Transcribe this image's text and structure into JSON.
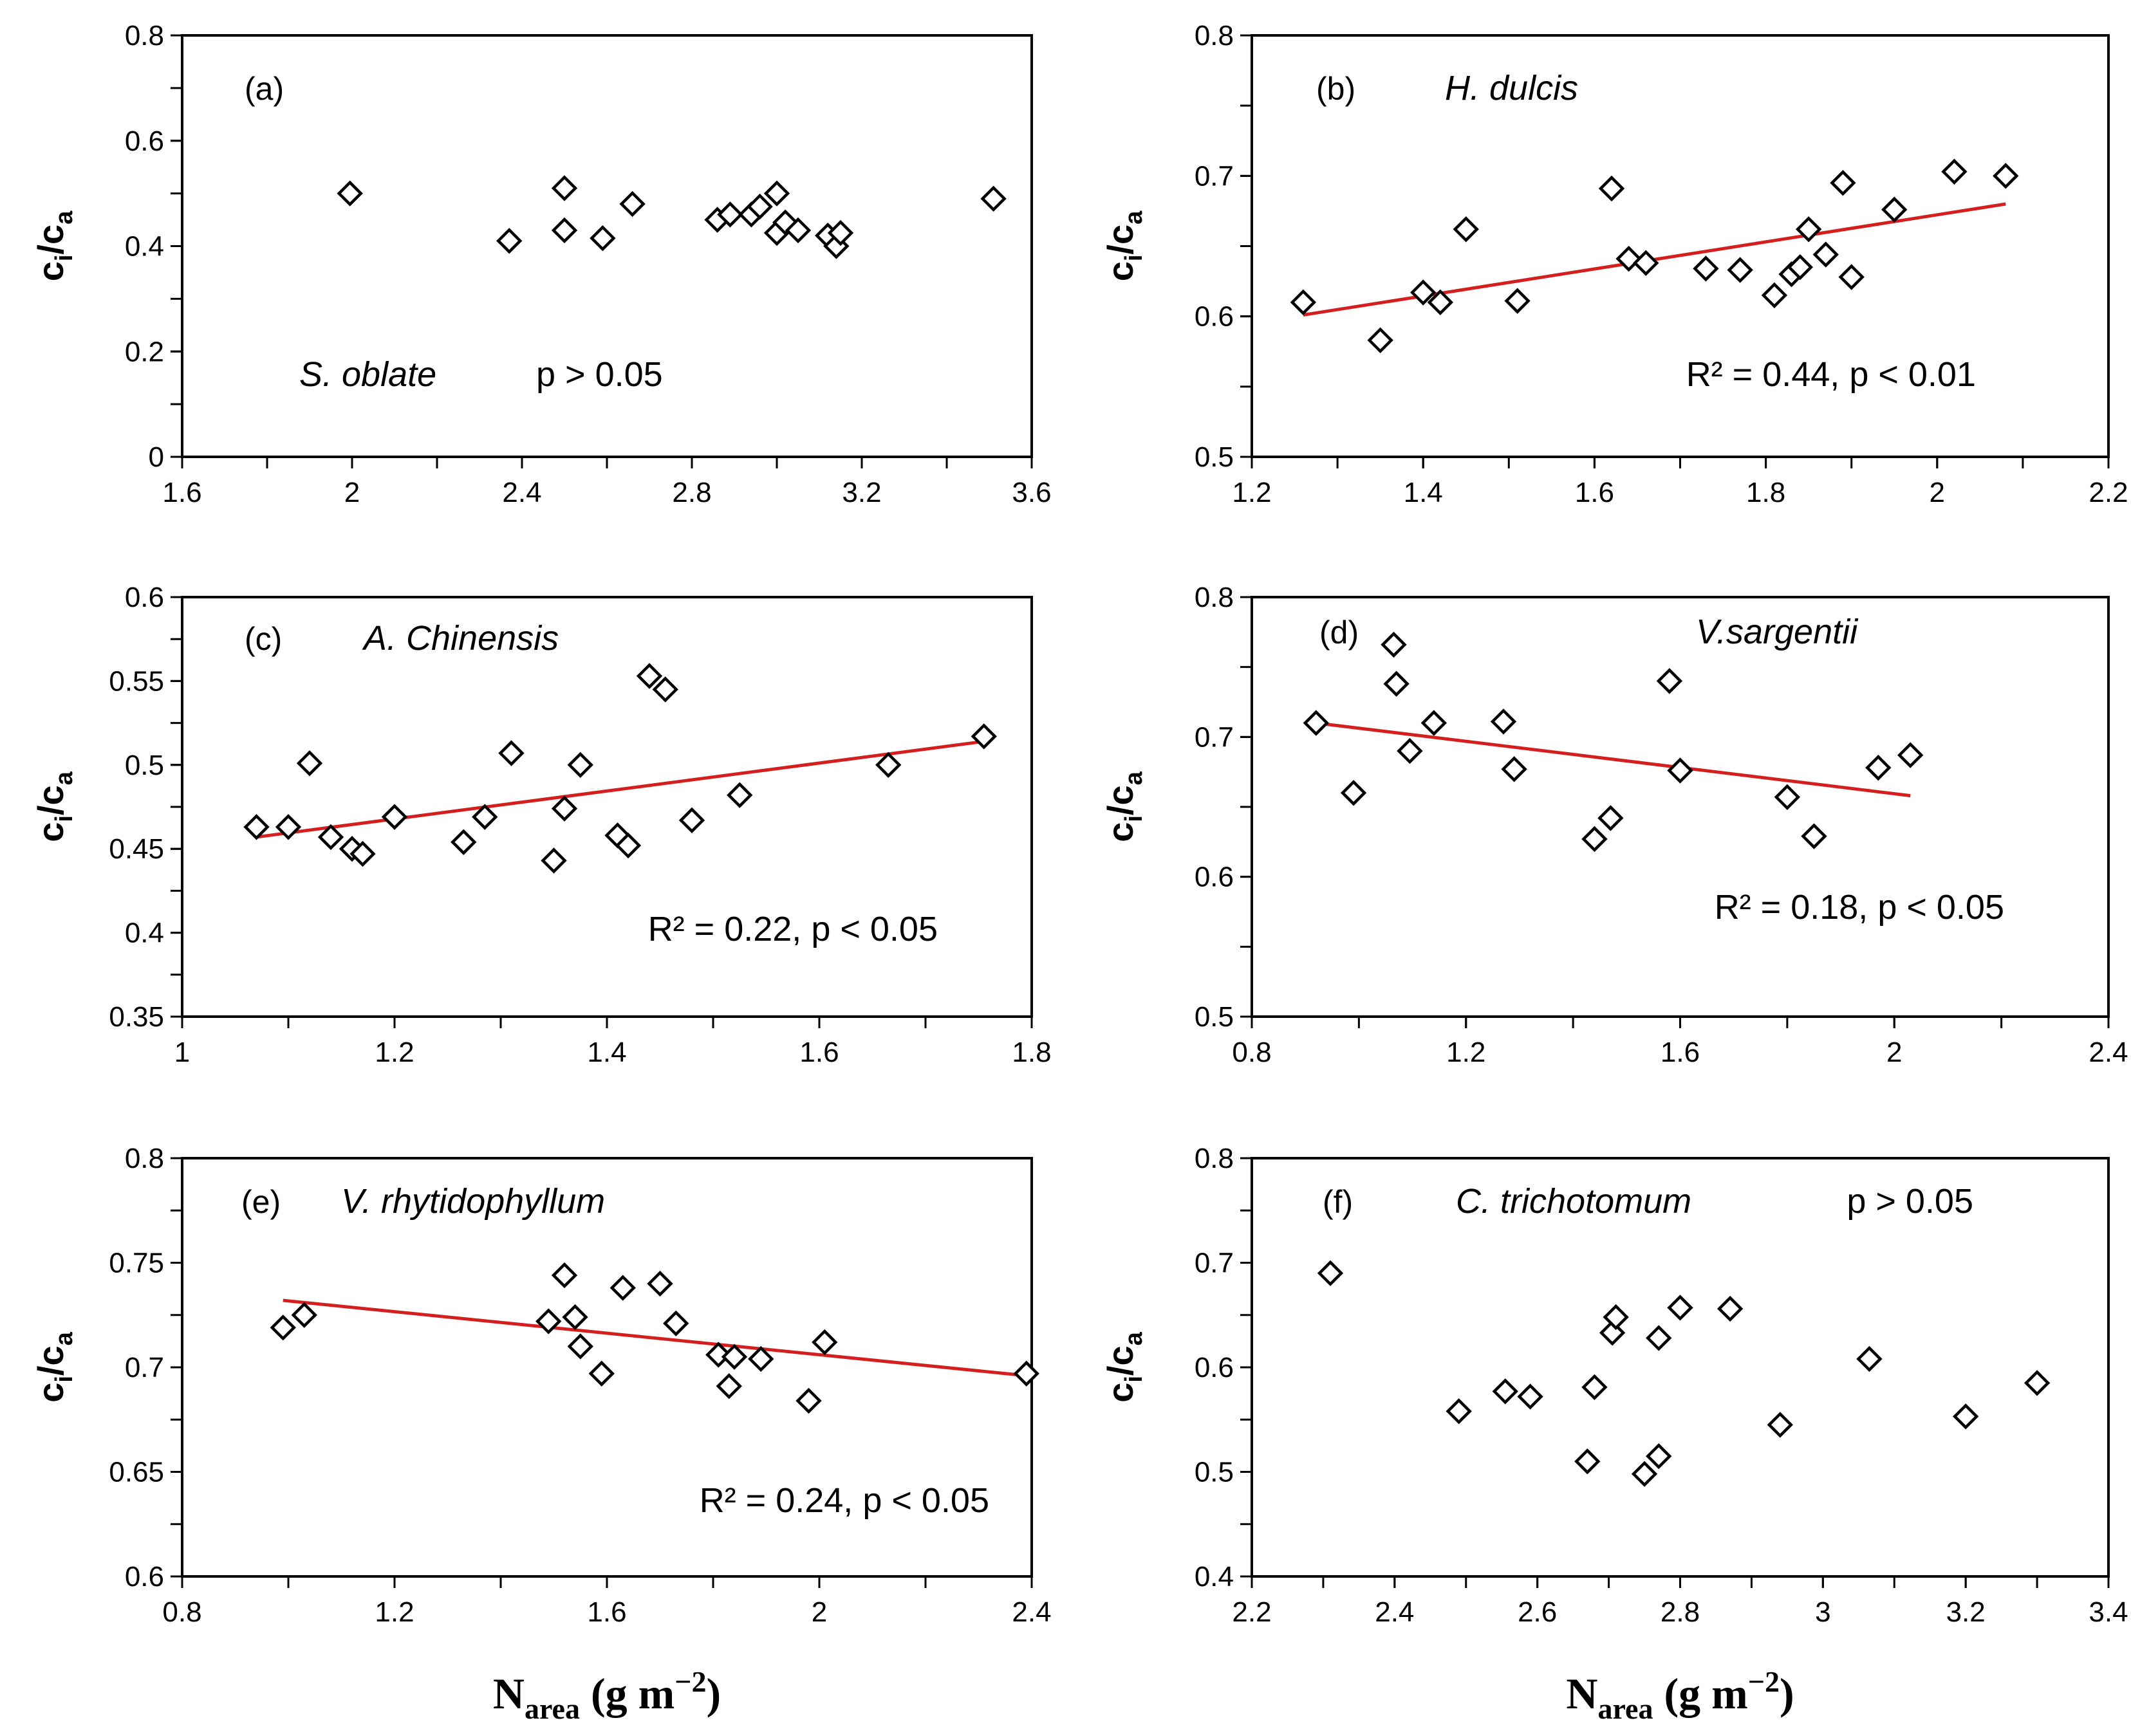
{
  "chart_data": [
    {
      "type": "scatter",
      "panel": "(a)",
      "species": "S. oblate",
      "stat_text": "p > 0.05",
      "ylabel": "ci/ca",
      "xlabel": "",
      "xlim": [
        1.6,
        3.6
      ],
      "ylim": [
        0,
        0.8
      ],
      "xticks": [
        "1.6",
        "2",
        "2.4",
        "2.8",
        "3.2",
        "3.6"
      ],
      "yticks": [
        "0",
        "0.2",
        "0.4",
        "0.6",
        "0.8"
      ],
      "x_minor_step": 0.2,
      "y_minor_step": 0.1,
      "points": [
        [
          1.995,
          0.5
        ],
        [
          2.37,
          0.41
        ],
        [
          2.5,
          0.51
        ],
        [
          2.5,
          0.43
        ],
        [
          2.59,
          0.415
        ],
        [
          2.66,
          0.48
        ],
        [
          2.86,
          0.45
        ],
        [
          2.89,
          0.46
        ],
        [
          2.94,
          0.46
        ],
        [
          2.96,
          0.475
        ],
        [
          3.0,
          0.5
        ],
        [
          3.0,
          0.425
        ],
        [
          3.02,
          0.445
        ],
        [
          3.05,
          0.43
        ],
        [
          3.12,
          0.42
        ],
        [
          3.14,
          0.4
        ],
        [
          3.15,
          0.425
        ],
        [
          3.51,
          0.49
        ]
      ],
      "fit": null
    },
    {
      "type": "scatter",
      "panel": "(b)",
      "species": "H. dulcis",
      "stat_text": "R² = 0.44, p < 0.01",
      "ylabel": "ci/ca",
      "xlabel": "",
      "xlim": [
        1.2,
        2.2
      ],
      "ylim": [
        0.5,
        0.8
      ],
      "xticks": [
        "1.2",
        "1.4",
        "1.6",
        "1.8",
        "2",
        "2.2"
      ],
      "yticks": [
        "0.5",
        "0.6",
        "0.7",
        "0.8"
      ],
      "x_minor_step": 0.1,
      "y_minor_step": 0.05,
      "points": [
        [
          1.26,
          0.61
        ],
        [
          1.35,
          0.583
        ],
        [
          1.4,
          0.617
        ],
        [
          1.42,
          0.61
        ],
        [
          1.45,
          0.662
        ],
        [
          1.51,
          0.611
        ],
        [
          1.62,
          0.691
        ],
        [
          1.64,
          0.641
        ],
        [
          1.66,
          0.638
        ],
        [
          1.73,
          0.634
        ],
        [
          1.77,
          0.633
        ],
        [
          1.81,
          0.615
        ],
        [
          1.83,
          0.63
        ],
        [
          1.84,
          0.635
        ],
        [
          1.85,
          0.662
        ],
        [
          1.87,
          0.644
        ],
        [
          1.89,
          0.695
        ],
        [
          1.9,
          0.628
        ],
        [
          1.95,
          0.676
        ],
        [
          2.02,
          0.703
        ],
        [
          2.08,
          0.7
        ]
      ],
      "fit": [
        [
          1.26,
          0.601
        ],
        [
          2.08,
          0.68
        ]
      ]
    },
    {
      "type": "scatter",
      "panel": "(c)",
      "species": "A. Chinensis",
      "stat_text": "R² = 0.22, p < 0.05",
      "ylabel": "ci/ca",
      "xlabel": "",
      "xlim": [
        1.0,
        1.8
      ],
      "ylim": [
        0.35,
        0.6
      ],
      "xticks": [
        "1",
        "1.2",
        "1.4",
        "1.6",
        "1.8"
      ],
      "yticks": [
        "0.35",
        "0.4",
        "0.45",
        "0.5",
        "0.55",
        "0.6"
      ],
      "x_minor_step": 0.1,
      "y_minor_step": 0.025,
      "points": [
        [
          1.07,
          0.463
        ],
        [
          1.1,
          0.463
        ],
        [
          1.12,
          0.501
        ],
        [
          1.14,
          0.457
        ],
        [
          1.16,
          0.45
        ],
        [
          1.17,
          0.447
        ],
        [
          1.2,
          0.469
        ],
        [
          1.265,
          0.454
        ],
        [
          1.285,
          0.469
        ],
        [
          1.31,
          0.507
        ],
        [
          1.35,
          0.443
        ],
        [
          1.36,
          0.474
        ],
        [
          1.375,
          0.5
        ],
        [
          1.41,
          0.458
        ],
        [
          1.42,
          0.452
        ],
        [
          1.44,
          0.553
        ],
        [
          1.455,
          0.545
        ],
        [
          1.48,
          0.467
        ],
        [
          1.525,
          0.482
        ],
        [
          1.665,
          0.5
        ],
        [
          1.755,
          0.517
        ]
      ],
      "fit": [
        [
          1.07,
          0.457
        ],
        [
          1.755,
          0.514
        ]
      ]
    },
    {
      "type": "scatter",
      "panel": "(d)",
      "species": "V.sargentii",
      "stat_text": "R² = 0.18, p < 0.05",
      "ylabel": "ci/ca",
      "xlabel": "",
      "xlim": [
        0.8,
        2.4
      ],
      "ylim": [
        0.5,
        0.8
      ],
      "xticks": [
        "0.8",
        "1.2",
        "1.6",
        "2",
        "2.4"
      ],
      "yticks": [
        "0.5",
        "0.6",
        "0.7",
        "0.8"
      ],
      "x_minor_step": 0.2,
      "y_minor_step": 0.05,
      "points": [
        [
          0.92,
          0.71
        ],
        [
          0.99,
          0.66
        ],
        [
          1.065,
          0.766
        ],
        [
          1.07,
          0.738
        ],
        [
          1.095,
          0.69
        ],
        [
          1.14,
          0.71
        ],
        [
          1.27,
          0.711
        ],
        [
          1.29,
          0.677
        ],
        [
          1.44,
          0.627
        ],
        [
          1.47,
          0.642
        ],
        [
          1.58,
          0.74
        ],
        [
          1.6,
          0.676
        ],
        [
          1.8,
          0.657
        ],
        [
          1.85,
          0.629
        ],
        [
          1.97,
          0.678
        ],
        [
          2.03,
          0.687
        ]
      ],
      "fit": [
        [
          0.92,
          0.71
        ],
        [
          2.03,
          0.658
        ]
      ]
    },
    {
      "type": "scatter",
      "panel": "(e)",
      "species": "V. rhytidophyllum",
      "stat_text": "R² = 0.24, p < 0.05",
      "ylabel": "ci/ca",
      "xlabel": "Narea (g m−2)",
      "xlim": [
        0.8,
        2.4
      ],
      "ylim": [
        0.6,
        0.8
      ],
      "xticks": [
        "0.8",
        "1.2",
        "1.6",
        "2",
        "2.4"
      ],
      "yticks": [
        "0.6",
        "0.65",
        "0.7",
        "0.75",
        "0.8"
      ],
      "x_minor_step": 0.2,
      "y_minor_step": 0.025,
      "points": [
        [
          0.99,
          0.719
        ],
        [
          1.03,
          0.725
        ],
        [
          1.49,
          0.722
        ],
        [
          1.52,
          0.744
        ],
        [
          1.54,
          0.724
        ],
        [
          1.55,
          0.71
        ],
        [
          1.59,
          0.697
        ],
        [
          1.63,
          0.738
        ],
        [
          1.7,
          0.74
        ],
        [
          1.73,
          0.721
        ],
        [
          1.81,
          0.706
        ],
        [
          1.83,
          0.691
        ],
        [
          1.84,
          0.705
        ],
        [
          1.89,
          0.704
        ],
        [
          1.98,
          0.684
        ],
        [
          2.01,
          0.712
        ],
        [
          2.39,
          0.697
        ]
      ],
      "fit": [
        [
          0.99,
          0.732
        ],
        [
          2.39,
          0.696
        ]
      ]
    },
    {
      "type": "scatter",
      "panel": "(f)",
      "species": "C. trichotomum",
      "stat_text": "p > 0.05",
      "ylabel": "ci/ca",
      "xlabel": "Narea (g m−2)",
      "xlim": [
        2.2,
        3.4
      ],
      "ylim": [
        0.4,
        0.8
      ],
      "xticks": [
        "2.2",
        "2.4",
        "2.6",
        "2.8",
        "3",
        "3.2",
        "3.4"
      ],
      "yticks": [
        "0.4",
        "0.5",
        "0.6",
        "0.7",
        "0.8"
      ],
      "x_minor_step": 0.1,
      "y_minor_step": 0.05,
      "points": [
        [
          2.31,
          0.69
        ],
        [
          2.49,
          0.558
        ],
        [
          2.555,
          0.577
        ],
        [
          2.59,
          0.572
        ],
        [
          2.67,
          0.51
        ],
        [
          2.68,
          0.581
        ],
        [
          2.705,
          0.633
        ],
        [
          2.71,
          0.648
        ],
        [
          2.75,
          0.498
        ],
        [
          2.77,
          0.515
        ],
        [
          2.77,
          0.628
        ],
        [
          2.8,
          0.657
        ],
        [
          2.87,
          0.656
        ],
        [
          2.94,
          0.545
        ],
        [
          3.065,
          0.608
        ],
        [
          3.2,
          0.553
        ],
        [
          3.3,
          0.585
        ]
      ],
      "fit": null
    }
  ]
}
